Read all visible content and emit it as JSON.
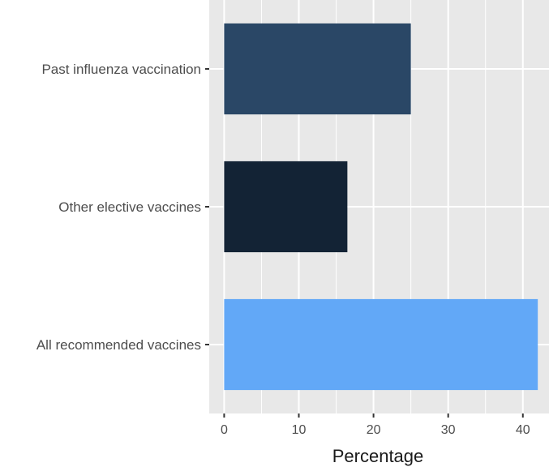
{
  "chart_data": {
    "type": "bar",
    "orientation": "horizontal",
    "categories": [
      "Past influenza vaccination",
      "Other elective vaccines",
      "All recommended vaccines"
    ],
    "values": [
      25,
      16.5,
      42
    ],
    "bar_colors": [
      "#2a4766",
      "#132335",
      "#62a8f7"
    ],
    "xlabel": "Percentage",
    "ylabel": "",
    "xlim": [
      -2,
      43.5
    ],
    "x_ticks": [
      0,
      10,
      20,
      30,
      40
    ],
    "grid": true,
    "panel_background": "#e8e8e8",
    "grid_color": "#ffffff"
  }
}
